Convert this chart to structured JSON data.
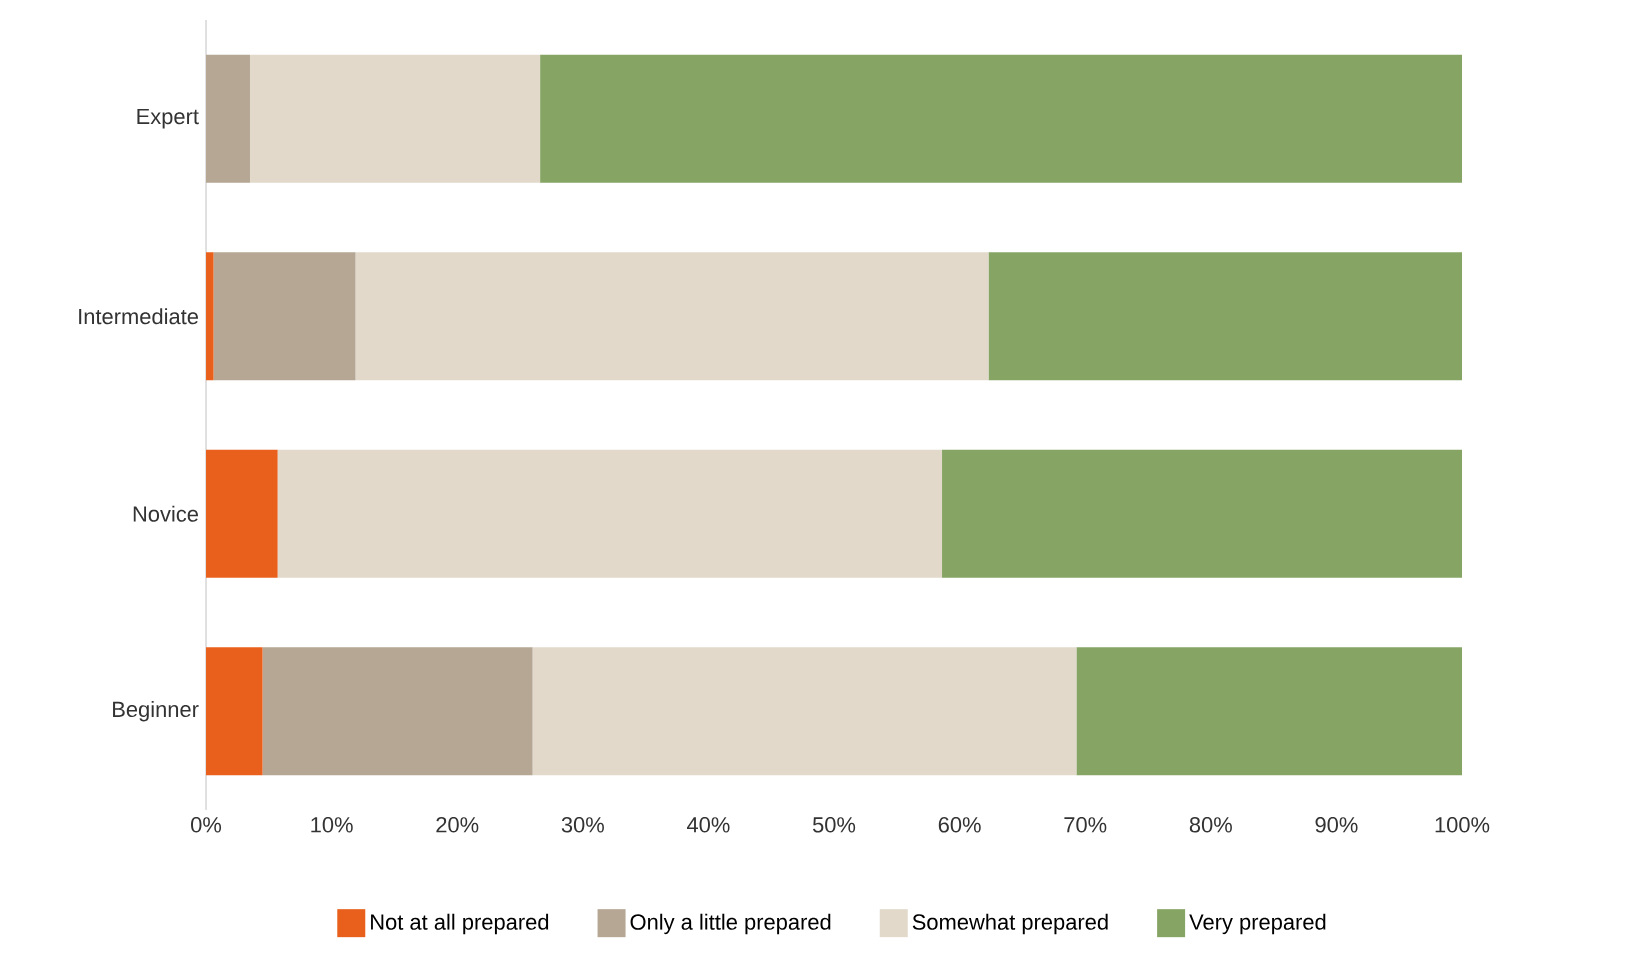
{
  "chart_data": {
    "type": "bar",
    "orientation": "horizontal",
    "stacked": true,
    "categories": [
      "Expert",
      "Intermediate",
      "Novice",
      "Beginner"
    ],
    "series": [
      {
        "name": "Not at all prepared",
        "color": "#e8601c",
        "values": [
          0,
          0.6,
          5.7,
          4.5
        ]
      },
      {
        "name": "Only a little prepared",
        "color": "#b5a794",
        "values": [
          3.5,
          11.3,
          0,
          21.5
        ]
      },
      {
        "name": "Somewhat prepared",
        "color": "#e2d9cb",
        "values": [
          23.1,
          50.4,
          52.9,
          43.3
        ]
      },
      {
        "name": "Very prepared",
        "color": "#86a464",
        "values": [
          73.4,
          37.7,
          41.4,
          30.7
        ]
      }
    ],
    "xlim": [
      0,
      100
    ],
    "xticks": [
      {
        "value": 0,
        "label": "0%"
      },
      {
        "value": 10,
        "label": "10%"
      },
      {
        "value": 20,
        "label": "20%"
      },
      {
        "value": 30,
        "label": "30%"
      },
      {
        "value": 40,
        "label": "40%"
      },
      {
        "value": 50,
        "label": "50%"
      },
      {
        "value": 60,
        "label": "60%"
      },
      {
        "value": 70,
        "label": "70%"
      },
      {
        "value": 80,
        "label": "80%"
      },
      {
        "value": 90,
        "label": "90%"
      },
      {
        "value": 100,
        "label": "100%"
      }
    ],
    "grid": false,
    "legend": "bottom"
  }
}
